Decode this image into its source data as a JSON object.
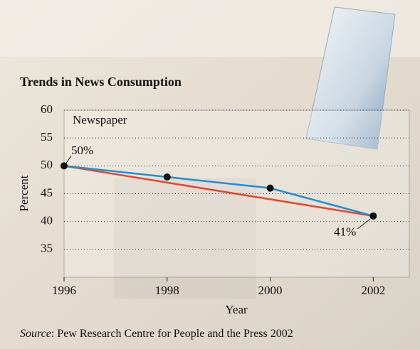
{
  "chart_data": {
    "type": "line",
    "title": "Trends in News Consumption",
    "label": "Newspaper",
    "xlabel": "Year",
    "ylabel": "Percent",
    "source": {
      "prefix": "Source",
      "text": ": Pew Research Centre for People and the Press 2002"
    },
    "xlim": [
      1996,
      2002.7
    ],
    "xticks": [
      1996,
      1998,
      2000,
      2002
    ],
    "ylim": [
      30,
      60
    ],
    "yticks": [
      35,
      40,
      45,
      50,
      55,
      60
    ],
    "grid": true,
    "series": [
      {
        "color": "#1e8fd0",
        "x": [
          1996,
          1998,
          2000,
          2002
        ],
        "values": [
          50,
          48,
          46,
          41
        ],
        "markers": true,
        "value_labels": [
          "50%",
          null,
          null,
          "41%"
        ]
      },
      {
        "color": "#e8452a",
        "x": [
          1996,
          2002
        ],
        "values": [
          50,
          41
        ],
        "markers": false
      }
    ]
  }
}
